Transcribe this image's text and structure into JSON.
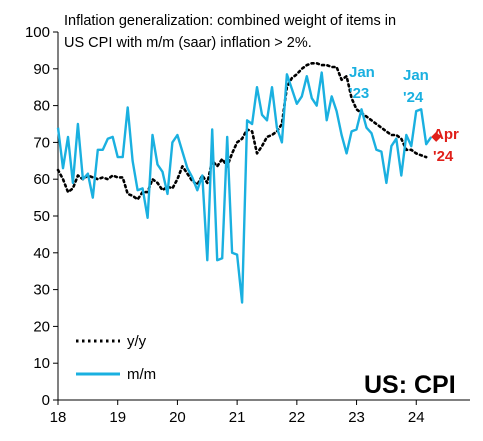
{
  "chart_data": {
    "type": "line",
    "title_lines": [
      "Inflation generalization: combined weight of items in",
      "US CPI with m/m (saar) inflation > 2%."
    ],
    "badge": "US: CPI",
    "x_ticks": [
      "18",
      "19",
      "20",
      "21",
      "22",
      "23",
      "24"
    ],
    "y_ticks": [
      "0",
      "10",
      "20",
      "30",
      "40",
      "50",
      "60",
      "70",
      "80",
      "90",
      "100"
    ],
    "xlim": [
      2018.0,
      2024.9
    ],
    "ylim": [
      0,
      100
    ],
    "grid": false,
    "legend_placement": "bottom-left",
    "colors": {
      "yy": "#000000",
      "mm": "#1ab0e0",
      "apr_marker": "#e0201a",
      "jan_labels": "#1ab0e0",
      "apr_label": "#e0201a"
    },
    "series": [
      {
        "name": "y/y",
        "key": "yy",
        "style": "dotted",
        "start": 2018.0,
        "step": 0.08333,
        "values": [
          62.5,
          60,
          56.5,
          57.5,
          61,
          60,
          61,
          60.5,
          60,
          60.5,
          60,
          61,
          60.5,
          60.5,
          56,
          55.5,
          54.5,
          56.5,
          56.5,
          60,
          59,
          57,
          58,
          57.5,
          60,
          63.5,
          61.5,
          59.5,
          58.5,
          61,
          59,
          65,
          63.5,
          65.5,
          63.5,
          67,
          70,
          71,
          73.5,
          73,
          67,
          69,
          71.5,
          72,
          73,
          75,
          85,
          87.5,
          88.5,
          90,
          91,
          91.5,
          91.5,
          91,
          91,
          90.5,
          90.5,
          87,
          88,
          82,
          79,
          78,
          77,
          76,
          75,
          74,
          73,
          72,
          72,
          71,
          68,
          68,
          67,
          66.5,
          66
        ]
      },
      {
        "name": "m/m",
        "key": "mm",
        "style": "solid",
        "start": 2018.0,
        "step": 0.08333,
        "values": [
          74,
          63,
          71.5,
          59,
          75,
          60,
          61.5,
          55,
          68,
          68,
          71,
          71.5,
          66,
          66,
          79.5,
          65,
          57,
          57.5,
          49.5,
          72,
          64,
          62,
          56,
          70,
          72,
          67.5,
          63,
          60.5,
          57,
          61,
          38,
          73.5,
          38,
          38.5,
          71.5,
          40,
          39.5,
          26.5,
          76,
          75,
          85,
          77.5,
          76,
          85,
          74,
          70,
          88.5,
          84.5,
          80.5,
          82.5,
          88,
          82,
          80,
          89,
          76,
          82.5,
          78.5,
          72,
          67,
          73,
          73.5,
          79,
          74,
          72.5,
          68,
          67.5,
          59,
          69,
          71,
          61,
          72,
          69,
          78.5,
          79,
          69.5,
          71.5
        ]
      }
    ],
    "annotations": [
      {
        "key": "jan23",
        "lines": [
          "Jan",
          "'23"
        ],
        "color": "cyan"
      },
      {
        "key": "jan24",
        "lines": [
          "Jan",
          "'24"
        ],
        "color": "cyan"
      },
      {
        "key": "apr24",
        "lines": [
          "Apr",
          "'24"
        ],
        "color": "red",
        "marker_value": 71.5
      }
    ]
  }
}
